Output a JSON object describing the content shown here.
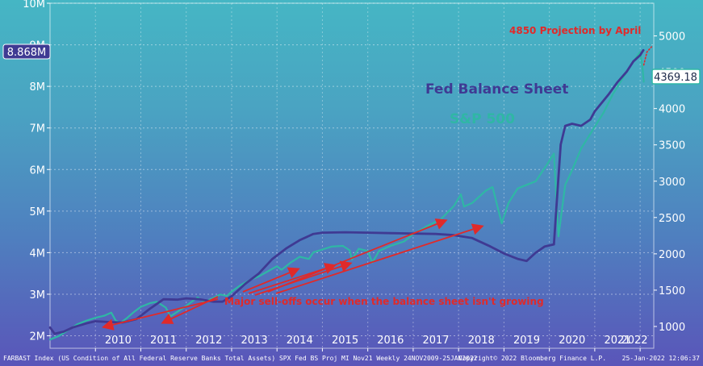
{
  "chart_data": {
    "type": "line",
    "title": "",
    "xlabel": "",
    "x_tick_labels": [
      "2010",
      "2011",
      "2012",
      "2013",
      "2014",
      "2015",
      "2016",
      "2017",
      "2018",
      "2019",
      "2020",
      "2021",
      "2022"
    ],
    "xlim": [
      2009.0,
      2022.3
    ],
    "left_axis": {
      "tick_labels": [
        "2M",
        "3M",
        "4M",
        "5M",
        "6M",
        "7M",
        "8M",
        "9M",
        "10M"
      ],
      "ylim": [
        1.7,
        10.0
      ],
      "unit": "M"
    },
    "right_axis": {
      "tick_labels": [
        "1000",
        "1500",
        "2000",
        "2500",
        "3000",
        "3500",
        "4000",
        "4500",
        "5000"
      ],
      "ylim": [
        700,
        5450
      ]
    },
    "series": [
      {
        "name": "Fed Balance Sheet",
        "axis": "left",
        "color": "#3f3a93",
        "points": [
          [
            2009.0,
            2.2
          ],
          [
            2009.1,
            2.05
          ],
          [
            2009.3,
            2.1
          ],
          [
            2009.5,
            2.2
          ],
          [
            2009.8,
            2.3
          ],
          [
            2010.0,
            2.35
          ],
          [
            2010.3,
            2.33
          ],
          [
            2010.6,
            2.32
          ],
          [
            2010.9,
            2.4
          ],
          [
            2011.2,
            2.65
          ],
          [
            2011.5,
            2.88
          ],
          [
            2011.8,
            2.87
          ],
          [
            2012.0,
            2.9
          ],
          [
            2012.3,
            2.88
          ],
          [
            2012.6,
            2.82
          ],
          [
            2012.8,
            2.82
          ],
          [
            2013.0,
            2.95
          ],
          [
            2013.3,
            3.25
          ],
          [
            2013.6,
            3.5
          ],
          [
            2013.9,
            3.85
          ],
          [
            2014.2,
            4.1
          ],
          [
            2014.5,
            4.3
          ],
          [
            2014.8,
            4.45
          ],
          [
            2015.0,
            4.48
          ],
          [
            2015.5,
            4.49
          ],
          [
            2016.0,
            4.48
          ],
          [
            2016.5,
            4.47
          ],
          [
            2017.0,
            4.46
          ],
          [
            2017.5,
            4.45
          ],
          [
            2017.9,
            4.42
          ],
          [
            2018.3,
            4.35
          ],
          [
            2018.7,
            4.15
          ],
          [
            2019.0,
            3.98
          ],
          [
            2019.3,
            3.85
          ],
          [
            2019.5,
            3.8
          ],
          [
            2019.7,
            4.0
          ],
          [
            2019.9,
            4.15
          ],
          [
            2020.1,
            4.2
          ],
          [
            2020.18,
            5.5
          ],
          [
            2020.25,
            6.6
          ],
          [
            2020.35,
            7.05
          ],
          [
            2020.5,
            7.1
          ],
          [
            2020.7,
            7.05
          ],
          [
            2020.9,
            7.2
          ],
          [
            2021.0,
            7.4
          ],
          [
            2021.3,
            7.8
          ],
          [
            2021.5,
            8.1
          ],
          [
            2021.7,
            8.35
          ],
          [
            2021.85,
            8.6
          ],
          [
            2022.0,
            8.75
          ],
          [
            2022.07,
            8.87
          ]
        ]
      },
      {
        "name": "S&P 500",
        "axis": "right",
        "color": "#2fb7a5",
        "points": [
          [
            2009.0,
            820
          ],
          [
            2009.2,
            870
          ],
          [
            2009.4,
            950
          ],
          [
            2009.6,
            1030
          ],
          [
            2009.8,
            1080
          ],
          [
            2010.0,
            1120
          ],
          [
            2010.2,
            1150
          ],
          [
            2010.35,
            1190
          ],
          [
            2010.45,
            1080
          ],
          [
            2010.55,
            1050
          ],
          [
            2010.7,
            1120
          ],
          [
            2010.85,
            1200
          ],
          [
            2011.0,
            1270
          ],
          [
            2011.2,
            1320
          ],
          [
            2011.35,
            1340
          ],
          [
            2011.55,
            1260
          ],
          [
            2011.65,
            1140
          ],
          [
            2011.8,
            1200
          ],
          [
            2011.95,
            1260
          ],
          [
            2012.1,
            1330
          ],
          [
            2012.25,
            1400
          ],
          [
            2012.4,
            1340
          ],
          [
            2012.55,
            1380
          ],
          [
            2012.75,
            1440
          ],
          [
            2012.9,
            1420
          ],
          [
            2013.0,
            1480
          ],
          [
            2013.2,
            1570
          ],
          [
            2013.4,
            1640
          ],
          [
            2013.6,
            1690
          ],
          [
            2013.8,
            1760
          ],
          [
            2014.0,
            1830
          ],
          [
            2014.1,
            1780
          ],
          [
            2014.3,
            1880
          ],
          [
            2014.5,
            1960
          ],
          [
            2014.7,
            1930
          ],
          [
            2014.8,
            2020
          ],
          [
            2015.0,
            2060
          ],
          [
            2015.2,
            2100
          ],
          [
            2015.45,
            2110
          ],
          [
            2015.6,
            2050
          ],
          [
            2015.65,
            1920
          ],
          [
            2015.8,
            2070
          ],
          [
            2016.0,
            2040
          ],
          [
            2016.1,
            1880
          ],
          [
            2016.25,
            2040
          ],
          [
            2016.5,
            2110
          ],
          [
            2016.8,
            2170
          ],
          [
            2017.0,
            2270
          ],
          [
            2017.3,
            2380
          ],
          [
            2017.6,
            2470
          ],
          [
            2017.9,
            2660
          ],
          [
            2018.05,
            2820
          ],
          [
            2018.12,
            2650
          ],
          [
            2018.3,
            2700
          ],
          [
            2018.6,
            2870
          ],
          [
            2018.75,
            2920
          ],
          [
            2018.95,
            2420
          ],
          [
            2019.1,
            2700
          ],
          [
            2019.3,
            2900
          ],
          [
            2019.5,
            2950
          ],
          [
            2019.7,
            3000
          ],
          [
            2019.95,
            3230
          ],
          [
            2020.1,
            3380
          ],
          [
            2020.2,
            2240
          ],
          [
            2020.35,
            2950
          ],
          [
            2020.5,
            3150
          ],
          [
            2020.7,
            3450
          ],
          [
            2020.9,
            3650
          ],
          [
            2021.0,
            3750
          ],
          [
            2021.2,
            3950
          ],
          [
            2021.4,
            4200
          ],
          [
            2021.6,
            4400
          ],
          [
            2021.8,
            4600
          ],
          [
            2022.0,
            4780
          ],
          [
            2022.05,
            4580
          ],
          [
            2022.08,
            4369
          ]
        ]
      }
    ],
    "projection": {
      "label": "4850 Projection by April",
      "color": "#e02a2a",
      "end_value": 4850,
      "points": [
        [
          2022.08,
          4600
        ],
        [
          2022.15,
          4780
        ],
        [
          2022.25,
          4850
        ]
      ]
    },
    "annotations": {
      "fed_label": "Fed Balance Sheet",
      "spx_label": "S&P 500",
      "selloff_note": "Major sell-offs occur when the balance sheet isn't growing",
      "arrow_targets": [
        [
          2010.2,
          1040,
          "right"
        ],
        [
          2011.5,
          1100,
          "right"
        ],
        [
          2014.45,
          1830,
          "right"
        ],
        [
          2015.25,
          1880,
          "right"
        ],
        [
          2015.6,
          1910,
          "right"
        ],
        [
          2017.7,
          2500,
          "right"
        ],
        [
          2018.5,
          2420,
          "right"
        ]
      ]
    },
    "last_values": {
      "fed": "8.868M",
      "spx": "4369.18"
    }
  },
  "footer": {
    "source": "FARBAST Index (US Condition of All Federal Reserve Banks Total Assets) SPX Fed BS Proj MI Nov21  Weekly 24NOV2009-25JAN2022",
    "copyright": "Copyright© 2022 Bloomberg Finance L.P.",
    "timestamp": "25-Jan-2022 12:06:37"
  }
}
